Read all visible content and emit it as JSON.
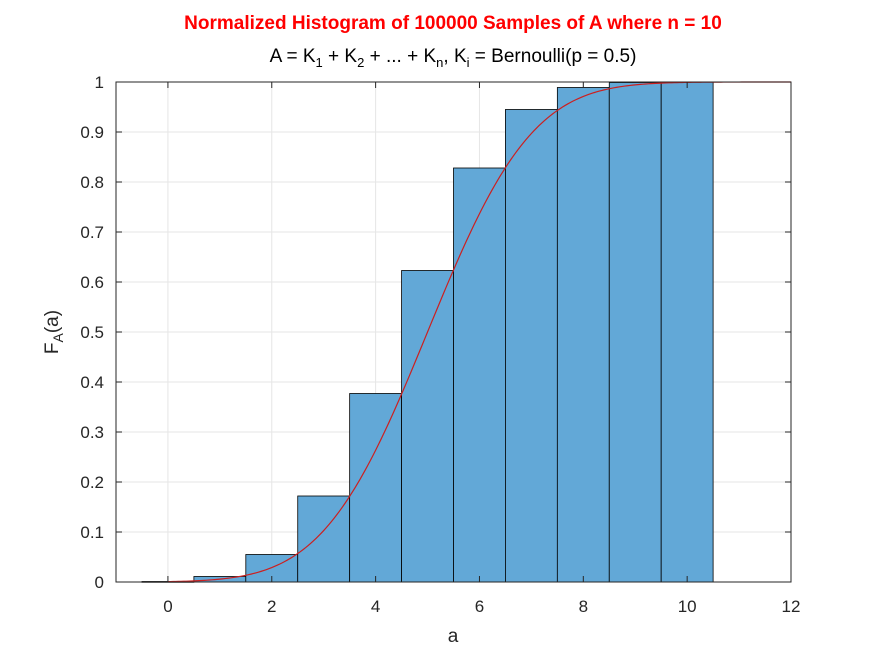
{
  "chart_data": {
    "type": "bar",
    "title": "Normalized Histogram of 100000 Samples of A where n = 10",
    "subtitle": {
      "p1": "A = K",
      "s1": "1",
      "p2": " + K",
      "s2": "2",
      "p3": " + ... + K",
      "s3": "n",
      "p4": ", K",
      "s4": "i",
      "p5": " = Bernoulli(p = 0.5)"
    },
    "xlabel": "a",
    "ylabel": {
      "main": "F",
      "sub": "A",
      "rest": "(a)"
    },
    "xlim": [
      -1,
      12
    ],
    "ylim": [
      0,
      1
    ],
    "xticks": [
      0,
      2,
      4,
      6,
      8,
      10,
      12
    ],
    "yticks": [
      0,
      0.1,
      0.2,
      0.3,
      0.4,
      0.5,
      0.6,
      0.7,
      0.8,
      0.9,
      1
    ],
    "xtick_labels": [
      "0",
      "2",
      "4",
      "6",
      "8",
      "10",
      "12"
    ],
    "ytick_labels": [
      "0",
      "0.1",
      "0.2",
      "0.3",
      "0.4",
      "0.5",
      "0.6",
      "0.7",
      "0.8",
      "0.9",
      "1"
    ],
    "grid": true,
    "categories": [
      0,
      1,
      2,
      3,
      4,
      5,
      6,
      7,
      8,
      9,
      10
    ],
    "values": [
      0.001,
      0.011,
      0.055,
      0.172,
      0.377,
      0.623,
      0.828,
      0.945,
      0.989,
      0.999,
      1.0
    ],
    "bin_width": 1,
    "bar_color": "#62a8d7",
    "bar_edge_color": "#000000",
    "curve": {
      "color": "#cc1f1f",
      "type": "normal-cdf",
      "mean": 5,
      "std": 1.5811,
      "x_range": [
        0,
        12
      ]
    },
    "colors": {
      "title": "#ff0000",
      "grid": "#e6e6e6",
      "axes": "#262626"
    }
  }
}
